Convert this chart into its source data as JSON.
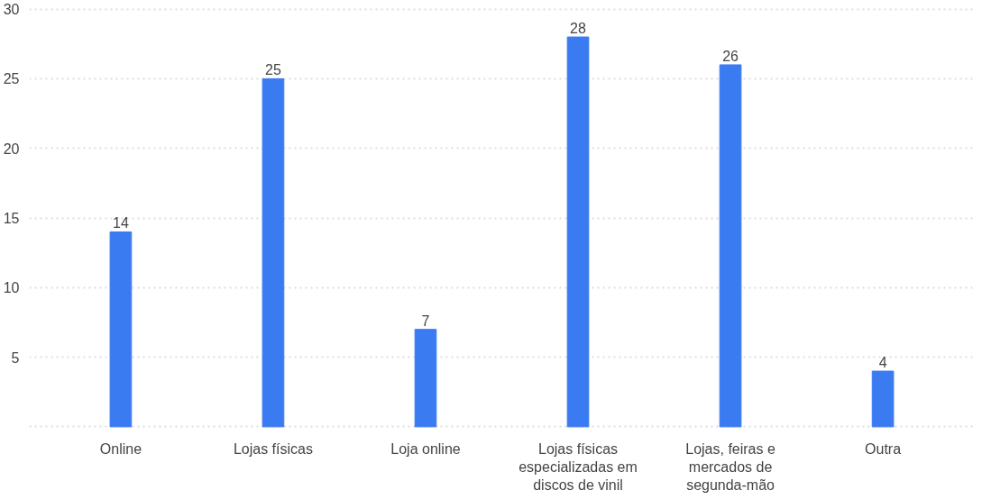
{
  "chart_data": {
    "type": "bar",
    "categories": [
      "Online",
      "Lojas físicas",
      "Loja online",
      "Lojas físicas especializadas em discos de vinil",
      "Lojas, feiras e mercados de segunda-mão",
      "Outra"
    ],
    "values": [
      14,
      25,
      7,
      28,
      26,
      4
    ],
    "color": "#3b7bf2",
    "ylim": [
      0,
      30
    ],
    "yticks": [
      {
        "value": 0,
        "label": null
      },
      5,
      10,
      15,
      20,
      25,
      30
    ],
    "grid": "y",
    "data_labels": true
  }
}
